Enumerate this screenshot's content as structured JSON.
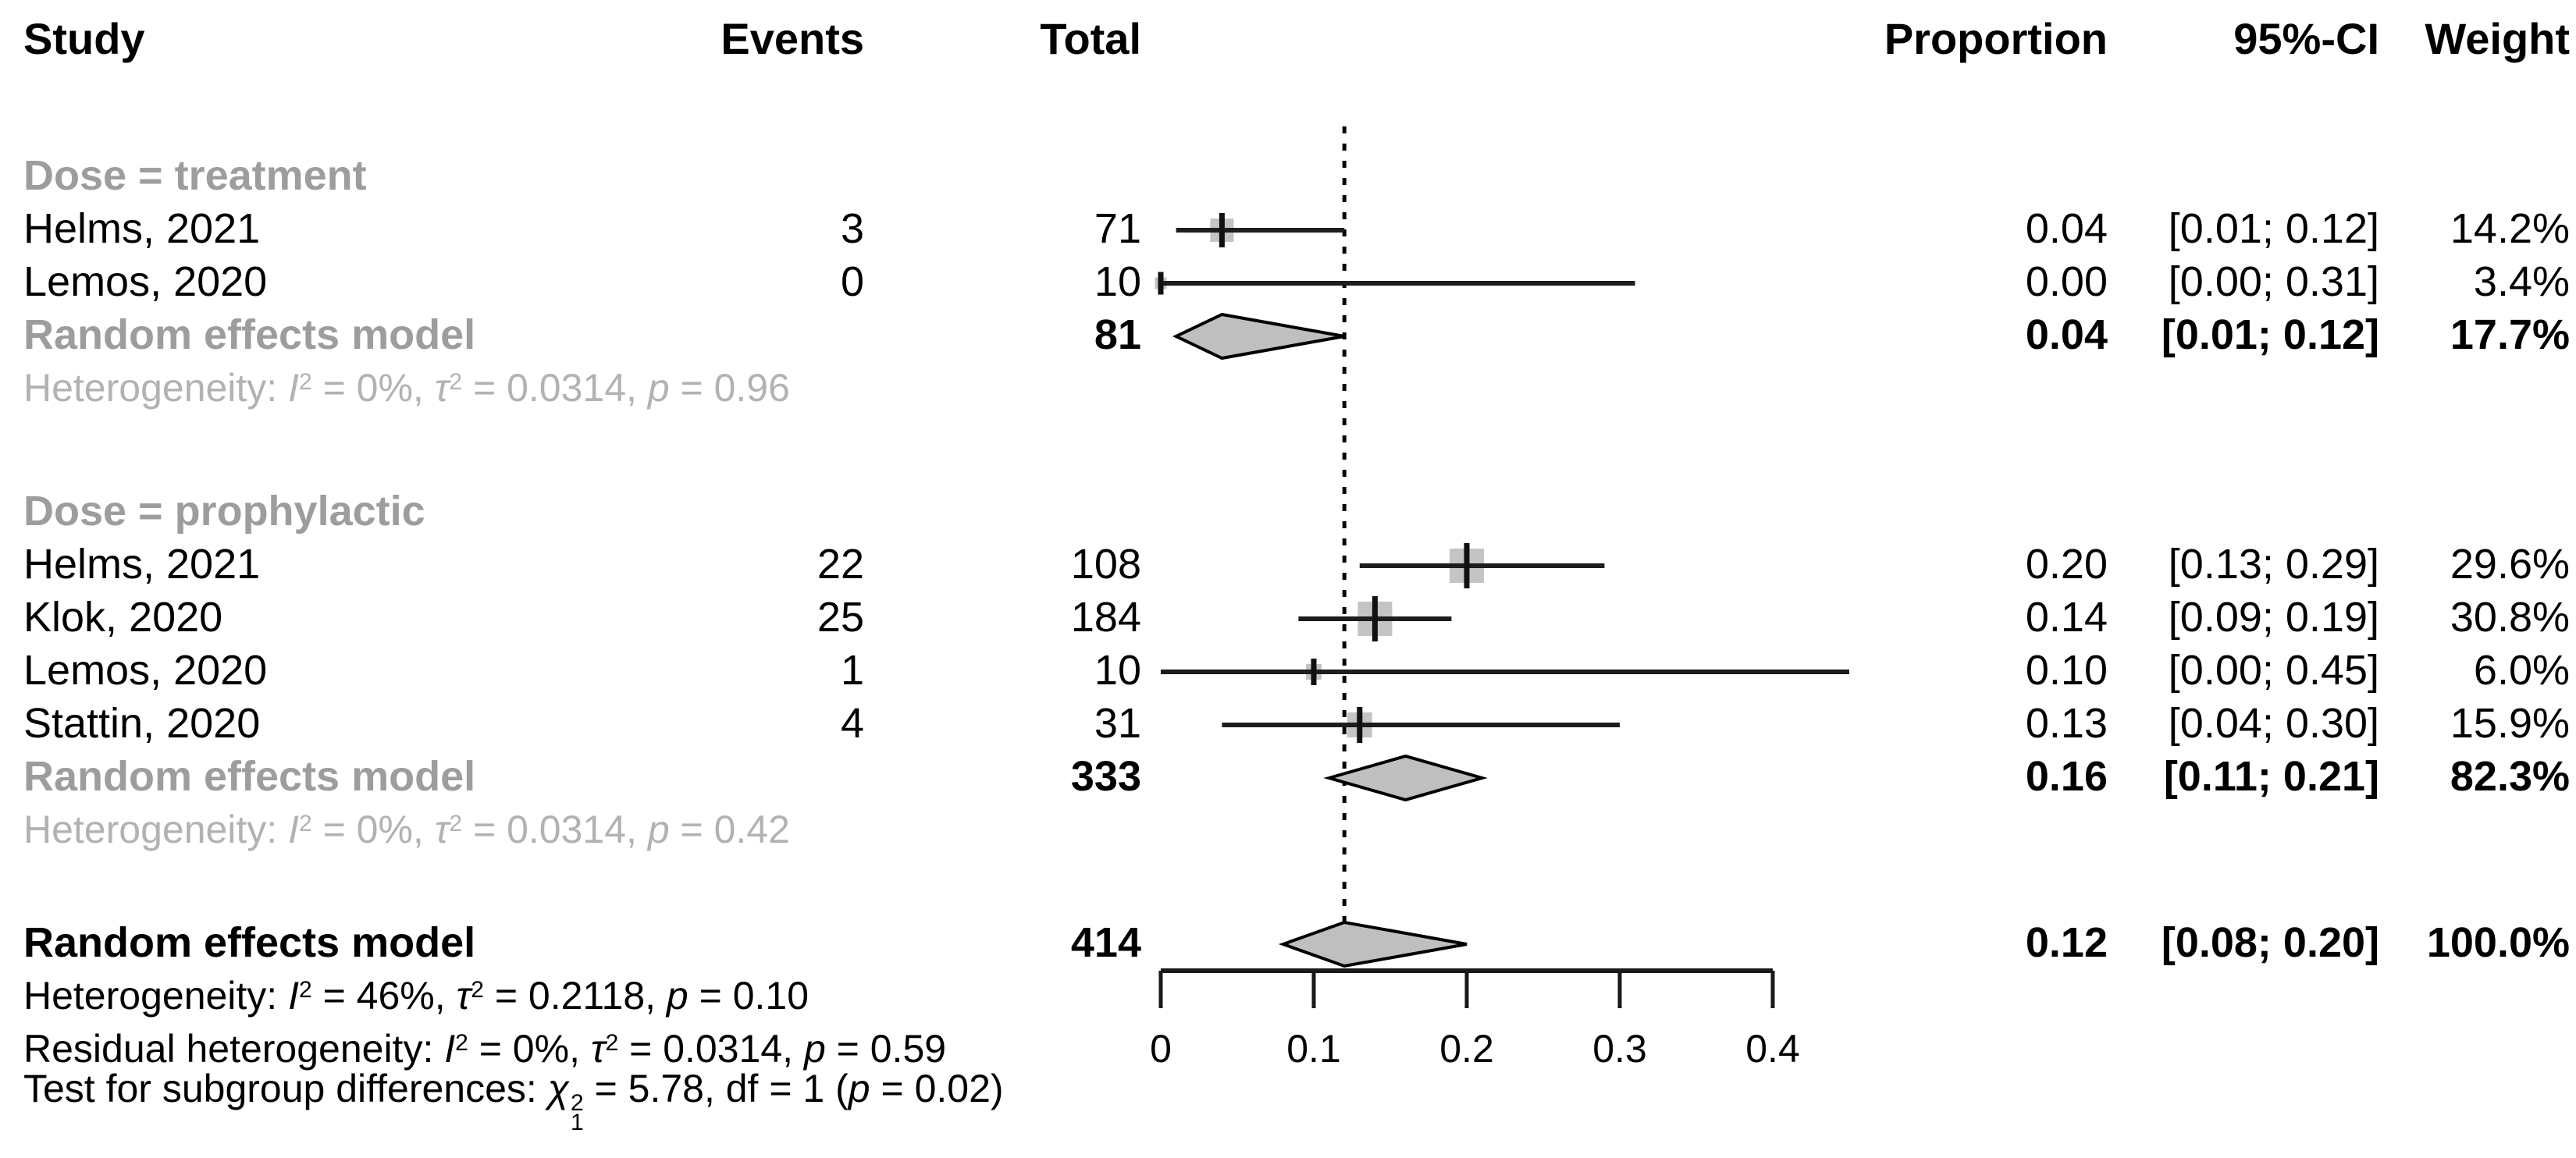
{
  "chart_data": {
    "type": "forest",
    "title": "",
    "columns": {
      "study": "Study",
      "events": "Events",
      "total": "Total",
      "proportion": "Proportion",
      "ci": "95%-CI",
      "weight": "Weight"
    },
    "xaxis": {
      "xlim": [
        0,
        0.45
      ],
      "ticks": [
        {
          "label": "0",
          "value": 0
        },
        {
          "label": "0.1",
          "value": 0.1
        },
        {
          "label": "0.2",
          "value": 0.2
        },
        {
          "label": "0.3",
          "value": 0.3
        },
        {
          "label": "0.4",
          "value": 0.4
        }
      ]
    },
    "ref_line": 0.12,
    "groups": [
      {
        "label": "Dose = treatment",
        "studies": [
          {
            "name": "Helms, 2021",
            "events": "3",
            "total": "71",
            "proportion": "0.04",
            "ci": "[0.01; 0.12]",
            "ci_low": 0.01,
            "ci_high": 0.12,
            "weight": "14.2%",
            "weight_value": 14.2
          },
          {
            "name": "Lemos, 2020",
            "events": "0",
            "total": "10",
            "proportion": "0.00",
            "ci": "[0.00; 0.31]",
            "ci_low": 0.0,
            "ci_high": 0.31,
            "weight": "3.4%",
            "weight_value": 3.4
          }
        ],
        "pooled": {
          "name": "Random effects model",
          "total": "81",
          "proportion": "0.04",
          "ci": "[0.01; 0.12]",
          "ci_low": 0.01,
          "ci_high": 0.12,
          "weight": "17.7%"
        },
        "heterogeneity": "Heterogeneity: I² = 0%, τ² = 0.0314, p = 0.96"
      },
      {
        "label": "Dose = prophylactic",
        "studies": [
          {
            "name": "Helms, 2021",
            "events": "22",
            "total": "108",
            "proportion": "0.20",
            "ci": "[0.13; 0.29]",
            "ci_low": 0.13,
            "ci_high": 0.29,
            "weight": "29.6%",
            "weight_value": 29.6
          },
          {
            "name": "Klok, 2020",
            "events": "25",
            "total": "184",
            "proportion": "0.14",
            "ci": "[0.09; 0.19]",
            "ci_low": 0.09,
            "ci_high": 0.19,
            "weight": "30.8%",
            "weight_value": 30.8
          },
          {
            "name": "Lemos, 2020",
            "events": "1",
            "total": "10",
            "proportion": "0.10",
            "ci": "[0.00; 0.45]",
            "ci_low": 0.0,
            "ci_high": 0.45,
            "weight": "6.0%",
            "weight_value": 6.0
          },
          {
            "name": "Stattin, 2020",
            "events": "4",
            "total": "31",
            "proportion": "0.13",
            "ci": "[0.04; 0.30]",
            "ci_low": 0.04,
            "ci_high": 0.3,
            "weight": "15.9%",
            "weight_value": 15.9
          }
        ],
        "pooled": {
          "name": "Random effects model",
          "total": "333",
          "proportion": "0.16",
          "ci": "[0.11; 0.21]",
          "ci_low": 0.11,
          "ci_high": 0.21,
          "weight": "82.3%"
        },
        "heterogeneity": "Heterogeneity: I² = 0%, τ² = 0.0314, p = 0.42"
      }
    ],
    "overall": {
      "name": "Random effects model",
      "total": "414",
      "proportion": "0.12",
      "ci": "[0.08; 0.20]",
      "ci_low": 0.08,
      "ci_high": 0.2,
      "weight": "100.0%"
    },
    "footnotes": [
      "Heterogeneity: I² = 46%, τ² = 0.2118, p = 0.10",
      "Residual heterogeneity: I² = 0%, τ² = 0.0314, p = 0.59",
      "Test for subgroup differences: χ₁² = 5.78, df = 1 (p = 0.02)"
    ],
    "colors": {
      "marker_fill": "#c4c4c4",
      "diamond_fill": "#bfbfbf",
      "line": "#1d1d1d",
      "subgroup_label": "#9d9d9d",
      "het_text": "#b2b2b2"
    }
  }
}
